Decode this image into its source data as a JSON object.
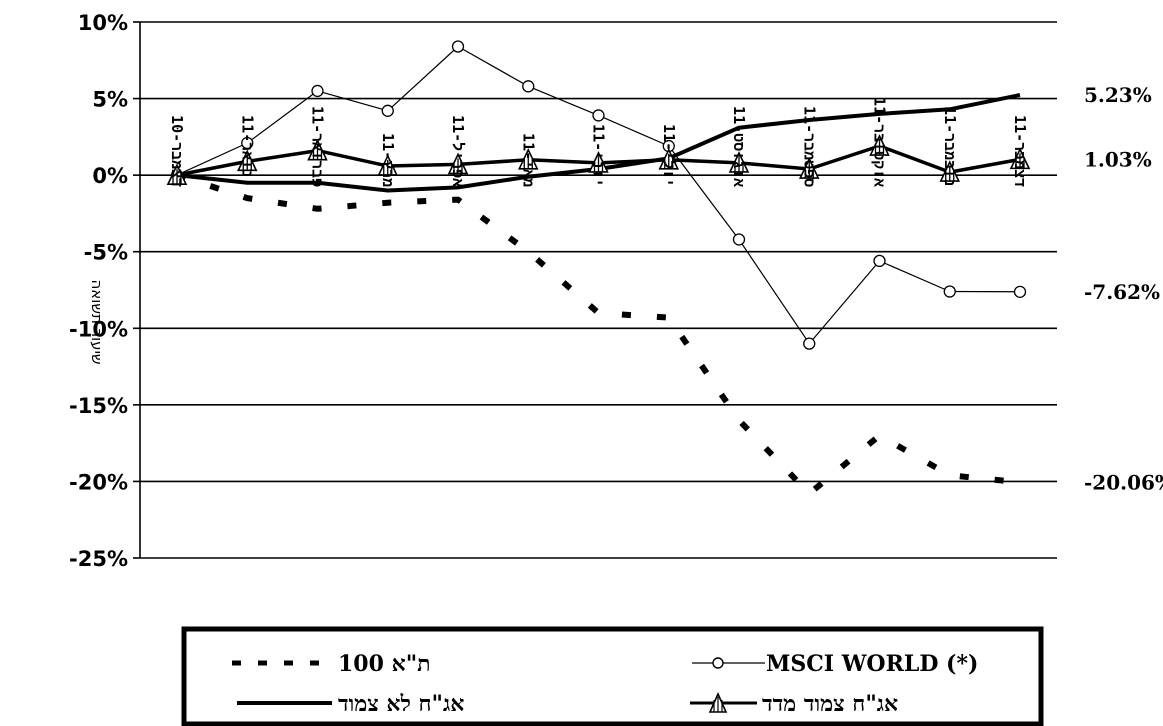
{
  "chart_data": {
    "type": "line",
    "ylabel": "שיעור תשואה",
    "ylim": [
      -25,
      10
    ],
    "yticks": [
      10,
      5,
      0,
      -5,
      -10,
      -15,
      -20,
      -25
    ],
    "ytick_labels": [
      "10%",
      "5%",
      "0%",
      "-5%",
      "-10%",
      "-15%",
      "-20%",
      "-25%"
    ],
    "grid": true,
    "legend_position": "bottom",
    "categories": [
      "דצמבר-10",
      "ינואר-11",
      "פברואר-11",
      "מרץ-11",
      "אפריל-11",
      "מאי-11",
      "יוני-11",
      "יולי-11",
      "אוגוסט-11",
      "ספטמבר-11",
      "אוקטובר-11",
      "נובמבר-11",
      "דצמבר-11"
    ],
    "series": [
      {
        "name": "ת\"א 100",
        "style": "dashed-thick",
        "color": "#000000",
        "values": [
          0,
          -1.5,
          -2.2,
          -1.8,
          -1.6,
          -5.0,
          -9.0,
          -9.3,
          -16.0,
          -20.8,
          -17.0,
          -19.6,
          -20.06
        ],
        "end_label": "-20.06%"
      },
      {
        "name": "MSCI WORLD (*)",
        "style": "thin-circle",
        "color": "#000000",
        "values": [
          0,
          2.1,
          5.5,
          4.2,
          8.4,
          5.8,
          3.9,
          1.9,
          -4.2,
          -11.0,
          -5.6,
          -7.6,
          -7.62
        ],
        "end_label": "-7.62%"
      },
      {
        "name": "אג\"ח לא צמוד",
        "style": "solid-thick",
        "color": "#000000",
        "values": [
          0,
          -0.5,
          -0.5,
          -1.0,
          -0.8,
          -0.1,
          0.4,
          1.1,
          3.1,
          3.6,
          4.0,
          4.3,
          5.23
        ],
        "end_label": "5.23%"
      },
      {
        "name": "אג\"ח צמוד מדד",
        "style": "solid-marker",
        "color": "#000000",
        "values": [
          0,
          0.9,
          1.6,
          0.6,
          0.7,
          1.0,
          0.8,
          1.0,
          0.8,
          0.4,
          1.9,
          0.2,
          1.03
        ],
        "end_label": "1.03%"
      }
    ],
    "legend": {
      "top_left": "ת\"א 100",
      "top_right": "MSCI WORLD (*)",
      "bottom_left": "אג\"ח לא צמוד",
      "bottom_right": "אג\"ח צמוד מדד"
    }
  }
}
